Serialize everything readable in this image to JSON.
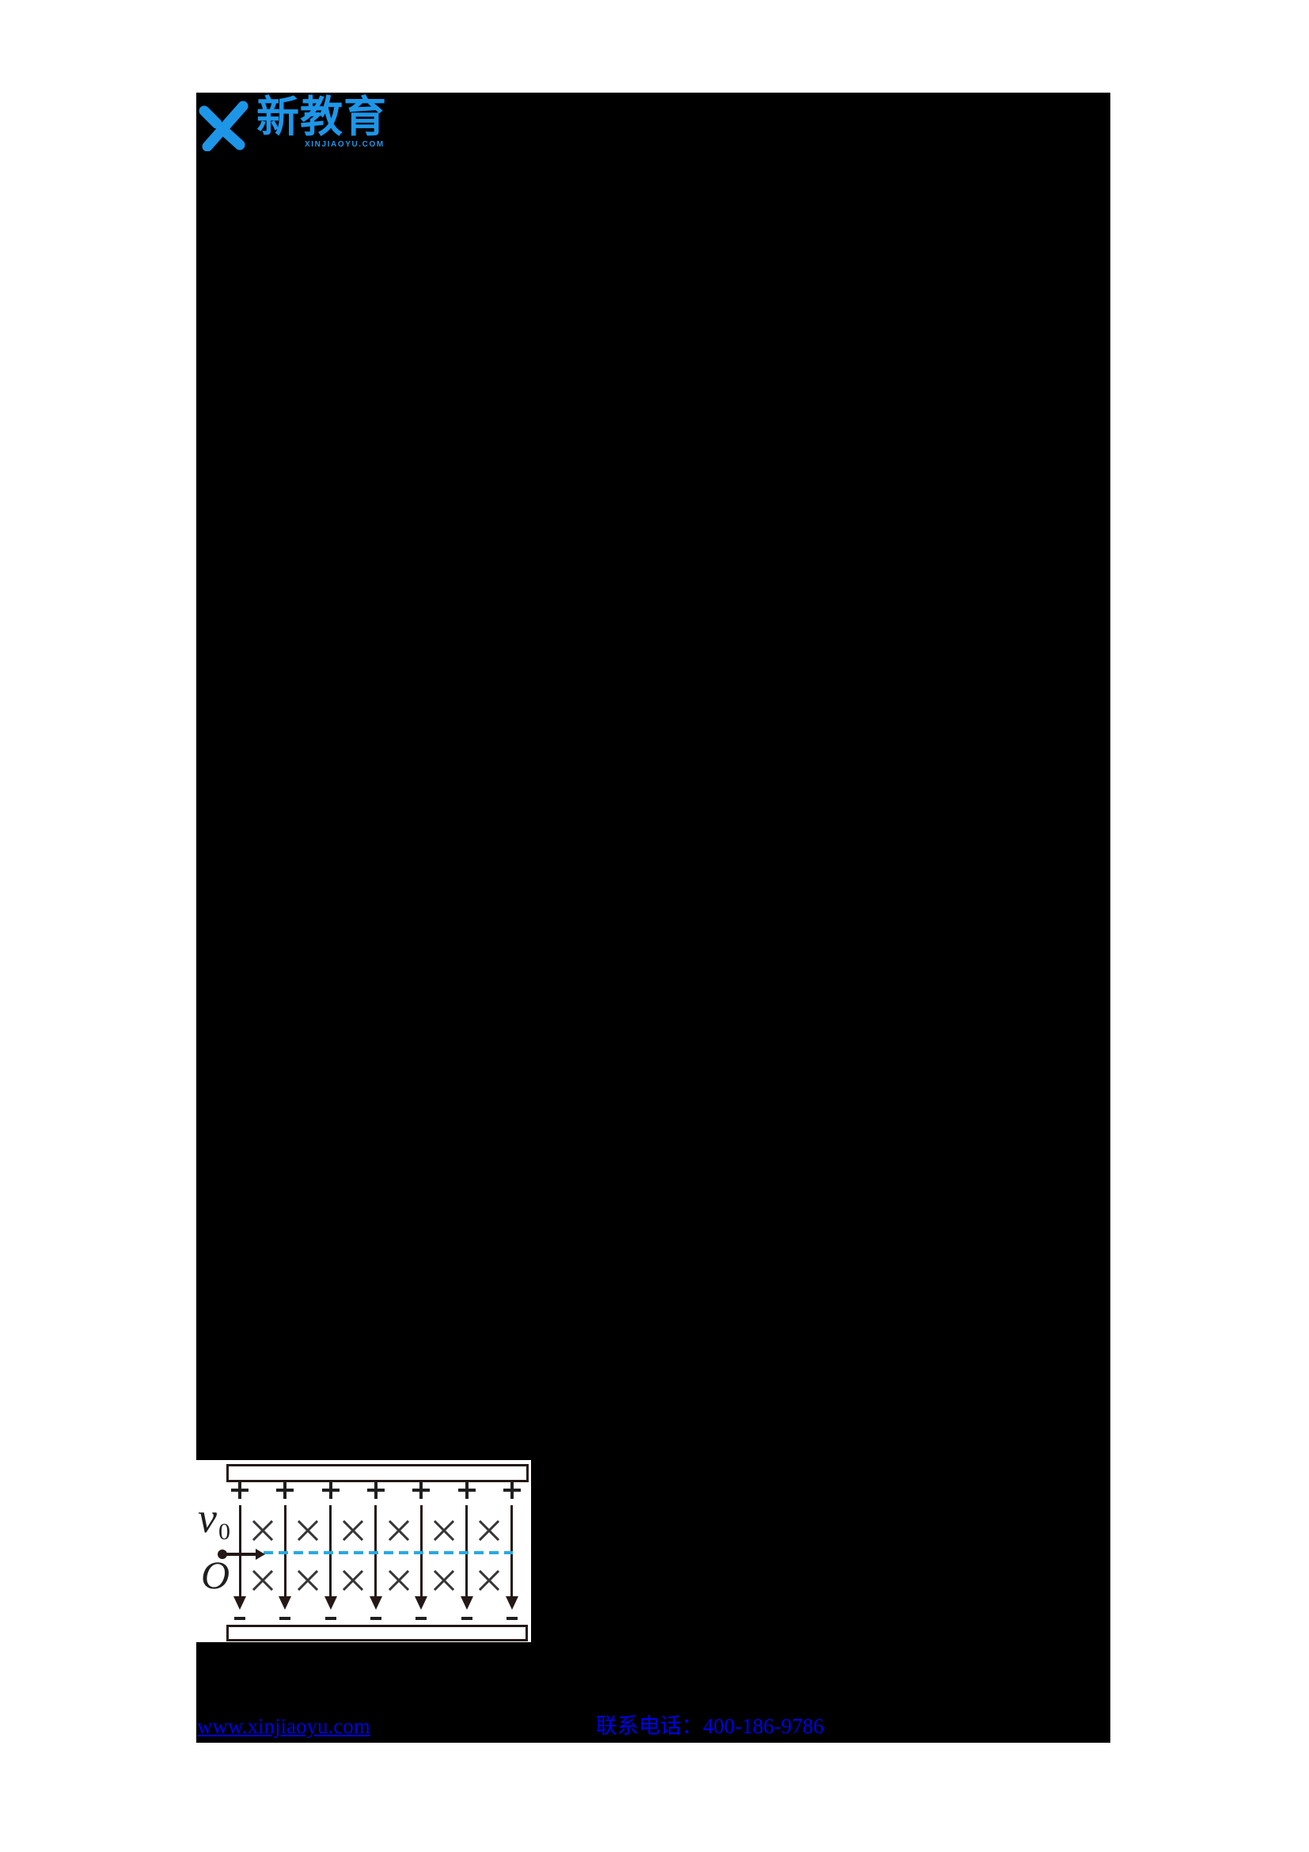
{
  "colors": {
    "page_bg": "#ffffff",
    "content_bg": "#000000"
  },
  "logo": {
    "brand": "新教育",
    "domain": "XINJIAOYU.COM",
    "color": "#1E96E8"
  },
  "figure": {
    "kind": "charged-particle-between-capacitor-plates",
    "plus_symbol": "+",
    "minus_symbol": "−",
    "cross_symbol": "×",
    "plus_count": 7,
    "minus_count": 7,
    "field_arrow_count": 7,
    "cross_rows": 2,
    "crosses_per_row": 6,
    "labels": {
      "velocity": "v",
      "velocity_sub": "0",
      "origin": "O"
    },
    "colors": {
      "ink": "#231815",
      "symbol": "#1f1f1f",
      "cross": "#363636",
      "trajectory": "#29A9E1",
      "background": "#ffffff"
    }
  },
  "footer": {
    "website": "www.xinjiaoyu.com",
    "phone": "联系电话：400-186-9786",
    "link_color": "#0000EE"
  }
}
